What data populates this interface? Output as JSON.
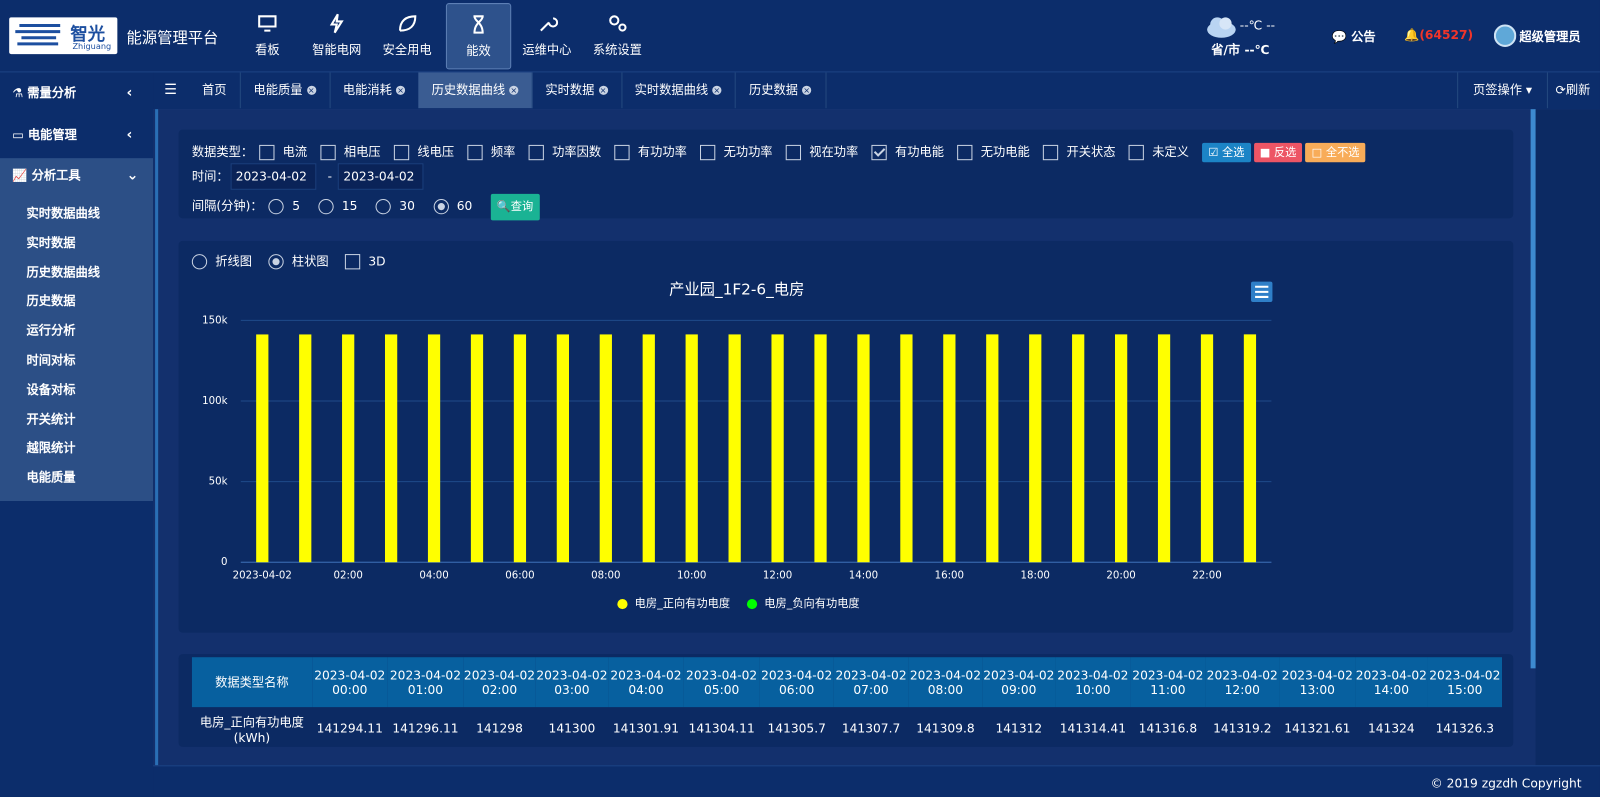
{
  "header": {
    "logo": "智光",
    "logo_sub": "Zhiguang",
    "title": "能源管理平台",
    "nav": [
      "看板",
      "智能电网",
      "安全用电",
      "能效",
      "运维中心",
      "系统设置"
    ],
    "weather": "--℃ --",
    "location": "省/市 --℃",
    "notice": "公告",
    "alerts": "(64527)",
    "user": "超级管理员"
  },
  "sidebar": {
    "groups": [
      "需量分析",
      "电能管理",
      "分析工具"
    ],
    "items": [
      "实时数据曲线",
      "实时数据",
      "历史数据曲线",
      "历史数据",
      "运行分析",
      "时间对标",
      "设备对标",
      "开关统计",
      "越限统计",
      "电能质量"
    ]
  },
  "tabs": {
    "items": [
      "首页",
      "电能质量",
      "电能消耗",
      "历史数据曲线",
      "实时数据",
      "实时数据曲线",
      "历史数据"
    ],
    "actions": "页签操作",
    "refresh": "刷新"
  },
  "filter": {
    "type_label": "数据类型：",
    "types": [
      "电流",
      "相电压",
      "线电压",
      "频率",
      "功率因数",
      "有功功率",
      "无功功率",
      "视在功率",
      "有功电能",
      "无功电能",
      "开关状态",
      "未定义"
    ],
    "buttons": [
      "全选",
      "反选",
      "全不选"
    ],
    "time_label": "时间：",
    "start": "2023-04-02",
    "separator": "-",
    "end": "2023-04-02",
    "interval_label": "间隔(分钟)：",
    "intervals": [
      "5",
      "15",
      "30",
      "60"
    ],
    "query": "查询"
  },
  "chart_options": [
    "折线图",
    "柱状图",
    "3D"
  ],
  "chart_data": {
    "type": "bar",
    "title": "产业园_1F2-6_电房",
    "categories": [
      "2023-04-02",
      null,
      "02:00",
      null,
      "04:00",
      null,
      "06:00",
      null,
      "08:00",
      null,
      "10:00",
      null,
      "12:00",
      null,
      "14:00",
      null,
      "16:00",
      null,
      "18:00",
      null,
      "20:00",
      null,
      "22:00",
      null
    ],
    "series": [
      {
        "name": "电房_正向有功电度",
        "color": "#ffff00",
        "values": [
          141294.11,
          141296.11,
          141298,
          141300,
          141301.91,
          141304.11,
          141305.7,
          141307.7,
          141309.8,
          141312,
          141314.41,
          141316.8,
          141319.2,
          141321.61,
          141324,
          141326.3,
          141328.6,
          141331,
          141333.3,
          141335.6,
          141338,
          141340.3,
          141342.6,
          141345
        ]
      },
      {
        "name": "电房_负向有功电度",
        "color": "#00ff00",
        "values": [
          null,
          null,
          null,
          null,
          null,
          null,
          null,
          null,
          null,
          null,
          null,
          null,
          null,
          null,
          null,
          null,
          null,
          null,
          null,
          null,
          null,
          null,
          null,
          null
        ]
      }
    ],
    "ylim": [
      0,
      150000
    ],
    "yticks": [
      0,
      {
        "value": 50000,
        "label": "50k"
      },
      {
        "value": 100000,
        "label": "100k"
      },
      {
        "value": 150000,
        "label": "150k"
      }
    ],
    "grid": true,
    "legend": "bottom"
  },
  "table": {
    "header": "数据类型名称",
    "columns": [
      "2023-04-02 00:00",
      "2023-04-02 01:00",
      "2023-04-02 02:00",
      "2023-04-02 03:00",
      "2023-04-02 04:00",
      "2023-04-02 05:00",
      "2023-04-02 06:00",
      "2023-04-02 07:00",
      "2023-04-02 08:00",
      "2023-04-02 09:00",
      "2023-04-02 10:00",
      "2023-04-02 11:00",
      "2023-04-02 12:00",
      "2023-04-02 13:00",
      "2023-04-02 14:00",
      "2023-04-02 15:00"
    ],
    "rows": [
      {
        "name": "电房_正向有功电度",
        "unit": "(kWh)"
      }
    ]
  },
  "footer": "© 2019 zgzdh Copyright"
}
